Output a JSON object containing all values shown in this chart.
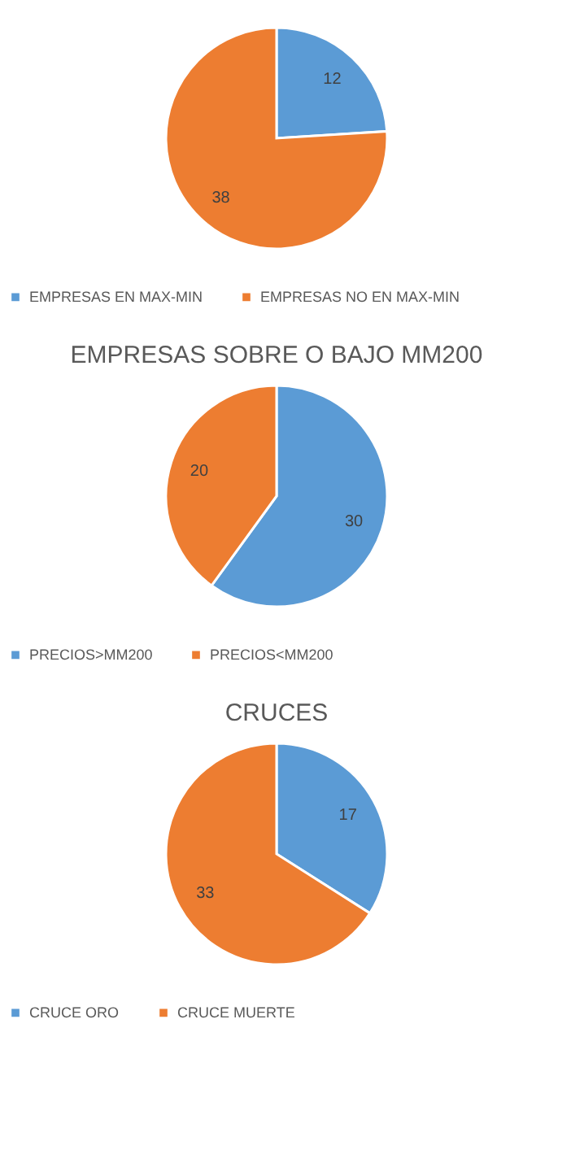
{
  "chart_data": [
    {
      "type": "pie",
      "categories": [
        "EMPRESAS EN MAX-MIN",
        "EMPRESAS NO EN MAX-MIN"
      ],
      "values": [
        12,
        38
      ],
      "colors": [
        "#5b9bd5",
        "#ed7d31"
      ],
      "data_labels": true,
      "legend": "bottom"
    },
    {
      "type": "pie",
      "title": "EMPRESAS SOBRE O BAJO MM200",
      "categories": [
        "PRECIOS>MM200",
        "PRECIOS<MM200"
      ],
      "values": [
        30,
        20
      ],
      "colors": [
        "#5b9bd5",
        "#ed7d31"
      ],
      "data_labels": true,
      "legend": "bottom"
    },
    {
      "type": "pie",
      "title": "CRUCES",
      "categories": [
        "CRUCE ORO",
        "CRUCE MUERTE"
      ],
      "values": [
        17,
        33
      ],
      "colors": [
        "#5b9bd5",
        "#ed7d31"
      ],
      "data_labels": true,
      "legend": "bottom"
    }
  ]
}
